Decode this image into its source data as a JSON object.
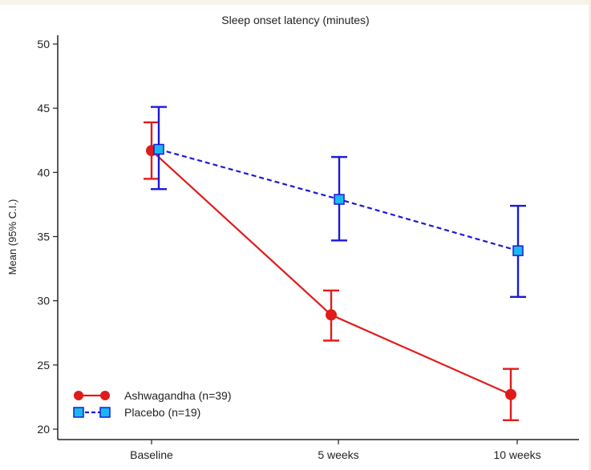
{
  "chart_data": {
    "type": "line",
    "title": "Sleep onset latency (minutes)",
    "xlabel": "",
    "ylabel": "Mean (95% C.I.)",
    "categories": [
      "Baseline",
      "5 weeks",
      "10 weeks"
    ],
    "ylim": [
      20,
      50
    ],
    "yticks": [
      20,
      25,
      30,
      35,
      40,
      45,
      50
    ],
    "grid": false,
    "legend_position": "bottom-left",
    "series": [
      {
        "name": "Ashwagandha (n=39)",
        "color": "#e01b1b",
        "marker": "circle",
        "line_style": "solid",
        "values": [
          41.7,
          28.9,
          22.7
        ],
        "ci_lower": [
          39.5,
          26.9,
          20.7
        ],
        "ci_upper": [
          43.9,
          30.8,
          24.7
        ]
      },
      {
        "name": "Placebo (n=19)",
        "color": "#1a1ad6",
        "marker_fill": "#1ab8f0",
        "marker": "square",
        "line_style": "dashed",
        "values": [
          41.8,
          37.9,
          33.9
        ],
        "ci_lower": [
          38.7,
          34.7,
          30.3
        ],
        "ci_upper": [
          45.1,
          41.2,
          37.4
        ]
      }
    ]
  }
}
